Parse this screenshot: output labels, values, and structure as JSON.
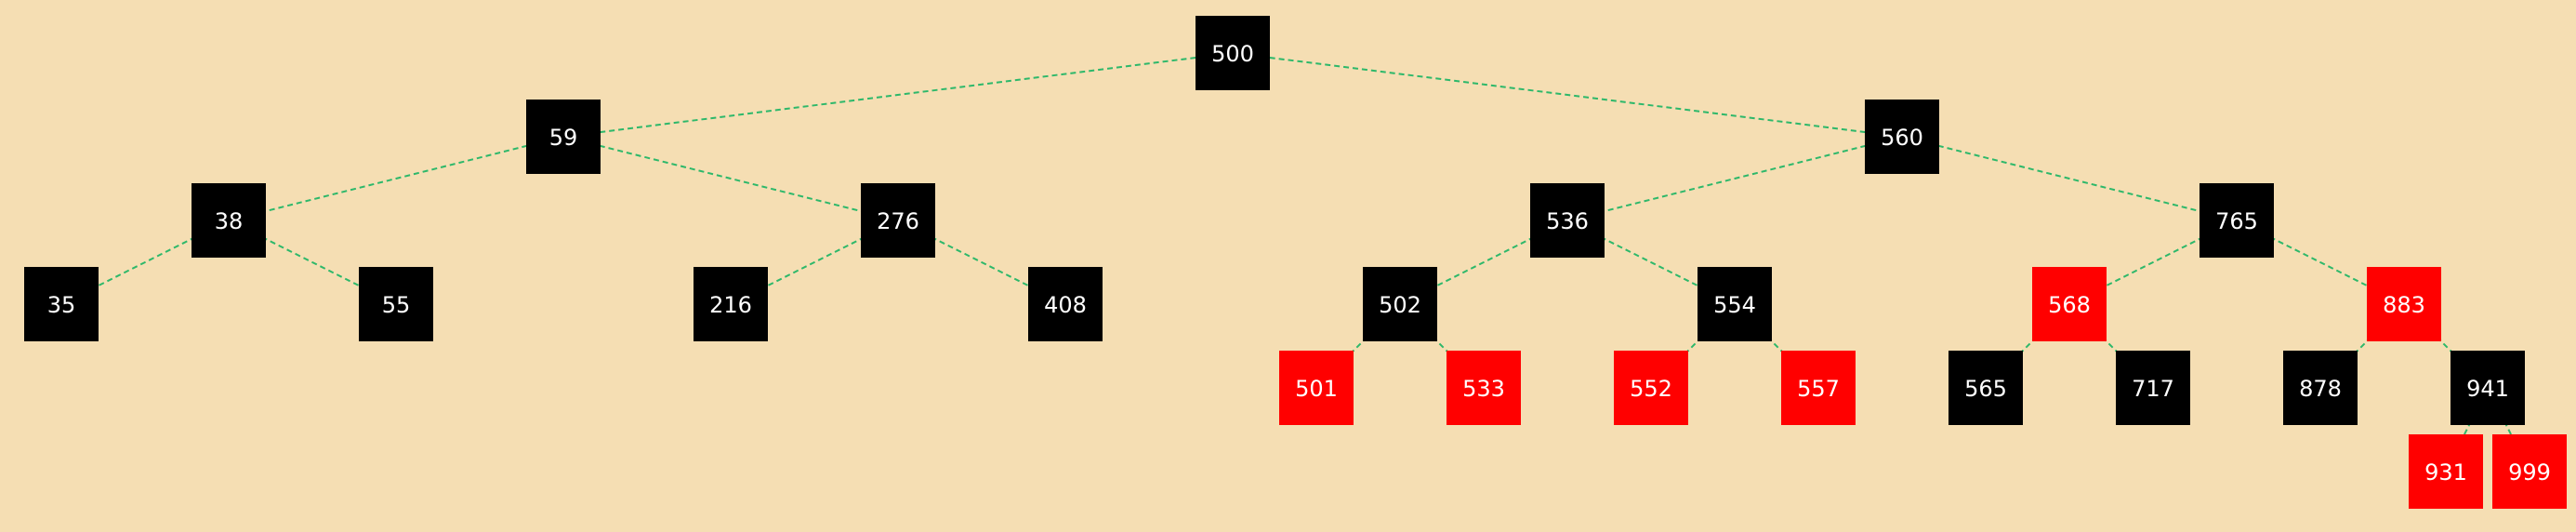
{
  "tree": {
    "type": "red-black-tree",
    "colors": {
      "background": "#f5deb3",
      "black_node": "#000000",
      "red_node": "#ff0000",
      "node_text": "#ffffff",
      "edge": "#2db86a"
    },
    "nodes": [
      {
        "id": "n500",
        "label": "500",
        "color": "black",
        "depth": 0
      },
      {
        "id": "n59",
        "label": "59",
        "color": "black",
        "depth": 1,
        "parent": "n500"
      },
      {
        "id": "n560",
        "label": "560",
        "color": "black",
        "depth": 1,
        "parent": "n500"
      },
      {
        "id": "n38",
        "label": "38",
        "color": "black",
        "depth": 2,
        "parent": "n59"
      },
      {
        "id": "n276",
        "label": "276",
        "color": "black",
        "depth": 2,
        "parent": "n59"
      },
      {
        "id": "n536",
        "label": "536",
        "color": "black",
        "depth": 2,
        "parent": "n560"
      },
      {
        "id": "n765",
        "label": "765",
        "color": "black",
        "depth": 2,
        "parent": "n560"
      },
      {
        "id": "n35",
        "label": "35",
        "color": "black",
        "depth": 3,
        "parent": "n38"
      },
      {
        "id": "n55",
        "label": "55",
        "color": "black",
        "depth": 3,
        "parent": "n38"
      },
      {
        "id": "n216",
        "label": "216",
        "color": "black",
        "depth": 3,
        "parent": "n276"
      },
      {
        "id": "n408",
        "label": "408",
        "color": "black",
        "depth": 3,
        "parent": "n276"
      },
      {
        "id": "n502",
        "label": "502",
        "color": "black",
        "depth": 3,
        "parent": "n536"
      },
      {
        "id": "n554",
        "label": "554",
        "color": "black",
        "depth": 3,
        "parent": "n536"
      },
      {
        "id": "n568",
        "label": "568",
        "color": "red",
        "depth": 3,
        "parent": "n765"
      },
      {
        "id": "n883",
        "label": "883",
        "color": "red",
        "depth": 3,
        "parent": "n765"
      },
      {
        "id": "n501",
        "label": "501",
        "color": "red",
        "depth": 4,
        "parent": "n502"
      },
      {
        "id": "n533",
        "label": "533",
        "color": "red",
        "depth": 4,
        "parent": "n502"
      },
      {
        "id": "n552",
        "label": "552",
        "color": "red",
        "depth": 4,
        "parent": "n554"
      },
      {
        "id": "n557",
        "label": "557",
        "color": "red",
        "depth": 4,
        "parent": "n554"
      },
      {
        "id": "n565",
        "label": "565",
        "color": "black",
        "depth": 4,
        "parent": "n568"
      },
      {
        "id": "n717",
        "label": "717",
        "color": "black",
        "depth": 4,
        "parent": "n568"
      },
      {
        "id": "n878",
        "label": "878",
        "color": "black",
        "depth": 4,
        "parent": "n883"
      },
      {
        "id": "n941",
        "label": "941",
        "color": "black",
        "depth": 4,
        "parent": "n883"
      },
      {
        "id": "n931",
        "label": "931",
        "color": "red",
        "depth": 5,
        "parent": "n941"
      },
      {
        "id": "n999",
        "label": "999",
        "color": "red",
        "depth": 5,
        "parent": "n941"
      }
    ]
  }
}
